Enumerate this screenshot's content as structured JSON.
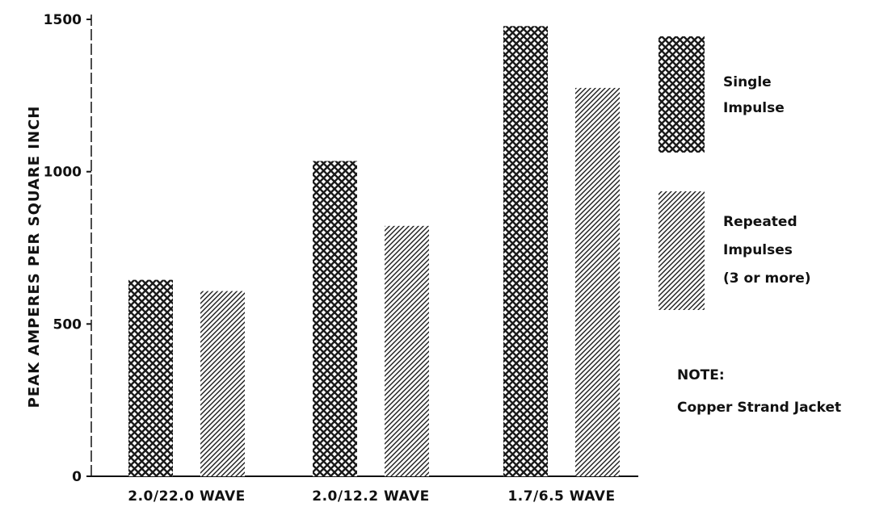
{
  "chart_data": {
    "type": "bar",
    "title": "",
    "xlabel": "",
    "ylabel": "PEAK AMPERES PER SQUARE INCH",
    "ylim": [
      0,
      1500
    ],
    "yticks": [
      0,
      500,
      1000,
      1500
    ],
    "categories": [
      "2.0/22.0 WAVE",
      "2.0/12.2 WAVE",
      "1.7/6.5 WAVE"
    ],
    "series": [
      {
        "name": "Single Impulse",
        "values": [
          645,
          1035,
          1478
        ],
        "pattern": "crosshatch",
        "color": "#1a1a1a"
      },
      {
        "name": "Repeated Impulses (3 or more)",
        "values": [
          608,
          822,
          1275
        ],
        "pattern": "diagonal",
        "color": "#1a1a1a"
      }
    ],
    "legend": {
      "placement": "right",
      "entries": [
        {
          "lines": [
            "Single",
            "Impulse"
          ]
        },
        {
          "lines": [
            "Repeated",
            "Impulses",
            "(3 or more)"
          ]
        }
      ]
    },
    "note": {
      "heading": "NOTE:",
      "text": "Copper Strand Jacket"
    },
    "grid": false
  }
}
